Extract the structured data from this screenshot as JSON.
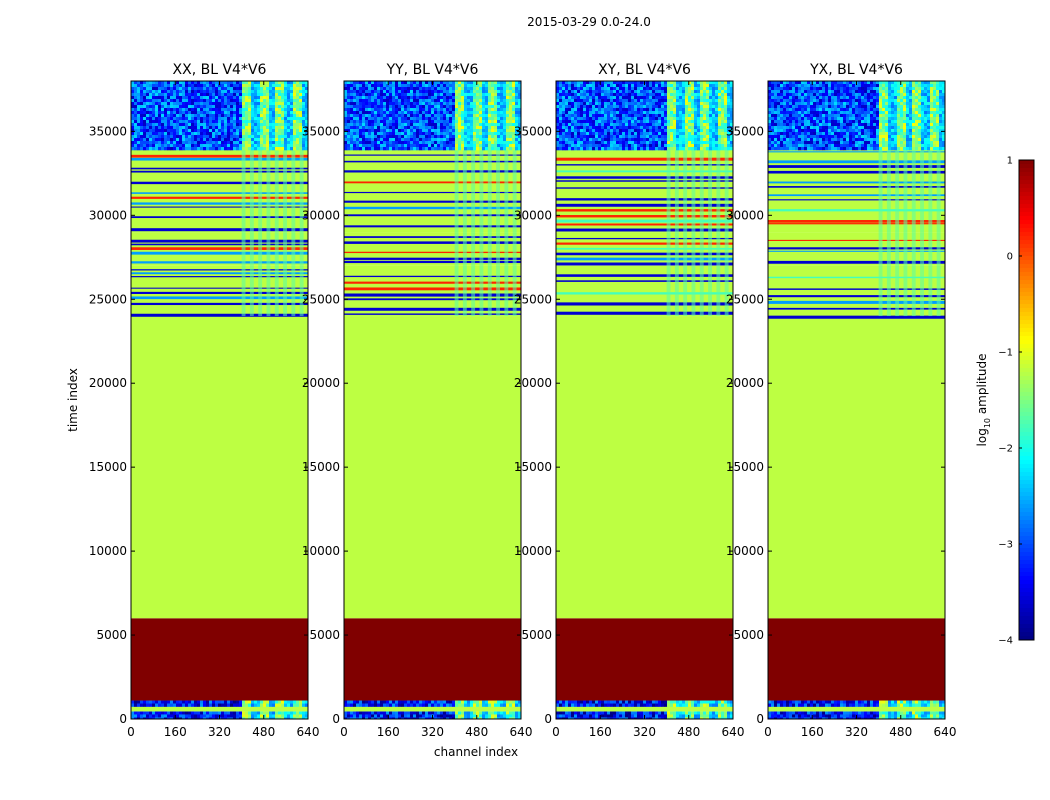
{
  "chart_data": {
    "type": "heatmap",
    "suptitle": "2015-03-29 0.0-24.0",
    "xlabel": "channel index",
    "ylabel": "time index",
    "xlim": [
      0,
      640
    ],
    "ylim": [
      0,
      38000
    ],
    "xticks": [
      0,
      160,
      320,
      480,
      640
    ],
    "yticks": [
      0,
      5000,
      10000,
      15000,
      20000,
      25000,
      30000,
      35000
    ],
    "colorbar": {
      "label": "log10 amplitude",
      "label_main": "log",
      "label_sub": "10",
      "label_rest": " amplitude",
      "vmin": -4,
      "vmax": 1,
      "ticks": [
        -4,
        -3,
        -2,
        -1,
        0,
        1
      ],
      "tick_labels": [
        "−4",
        "−3",
        "−2",
        "−1",
        "0",
        "1"
      ],
      "colormap": "jet"
    },
    "fill_value": -1.2,
    "panels": [
      {
        "title": "XX, BL V4*V6",
        "signal_channels": [
          400,
          640
        ],
        "bands": [
          {
            "t": [
              0,
              450
            ],
            "kind": "noisy"
          },
          {
            "t": [
              450,
              800
            ],
            "kind": "fill"
          },
          {
            "t": [
              800,
              1100
            ],
            "kind": "noisy"
          },
          {
            "t": [
              1100,
              6000
            ],
            "kind": "max"
          },
          {
            "t": [
              6000,
              24000
            ],
            "kind": "fill"
          },
          {
            "t": [
              24000,
              27000
            ],
            "kind": "striped"
          },
          {
            "t": [
              27000,
              29000
            ],
            "kind": "striped"
          },
          {
            "t": [
              29000,
              34000
            ],
            "kind": "striped"
          },
          {
            "t": [
              34000,
              38000
            ],
            "kind": "active"
          }
        ]
      },
      {
        "title": "YY, BL V4*V6",
        "signal_channels": [
          400,
          640
        ],
        "bands": [
          {
            "t": [
              0,
              450
            ],
            "kind": "noisy"
          },
          {
            "t": [
              450,
              800
            ],
            "kind": "fill"
          },
          {
            "t": [
              800,
              1100
            ],
            "kind": "noisy"
          },
          {
            "t": [
              1100,
              6000
            ],
            "kind": "max"
          },
          {
            "t": [
              6000,
              24000
            ],
            "kind": "fill"
          },
          {
            "t": [
              24000,
              27000
            ],
            "kind": "striped"
          },
          {
            "t": [
              27000,
              29000
            ],
            "kind": "striped"
          },
          {
            "t": [
              29000,
              34000
            ],
            "kind": "striped"
          },
          {
            "t": [
              34000,
              38000
            ],
            "kind": "active"
          }
        ]
      },
      {
        "title": "XY, BL V4*V6",
        "signal_channels": [
          400,
          640
        ],
        "bands": [
          {
            "t": [
              0,
              450
            ],
            "kind": "noisy"
          },
          {
            "t": [
              450,
              800
            ],
            "kind": "fill"
          },
          {
            "t": [
              800,
              1100
            ],
            "kind": "noisy"
          },
          {
            "t": [
              1100,
              6000
            ],
            "kind": "max"
          },
          {
            "t": [
              6000,
              24000
            ],
            "kind": "fill"
          },
          {
            "t": [
              24000,
              27000
            ],
            "kind": "striped"
          },
          {
            "t": [
              27000,
              29000
            ],
            "kind": "striped"
          },
          {
            "t": [
              29000,
              34000
            ],
            "kind": "striped"
          },
          {
            "t": [
              34000,
              38000
            ],
            "kind": "active"
          }
        ]
      },
      {
        "title": "YX, BL V4*V6",
        "signal_channels": [
          400,
          640
        ],
        "bands": [
          {
            "t": [
              0,
              450
            ],
            "kind": "noisy"
          },
          {
            "t": [
              450,
              800
            ],
            "kind": "fill"
          },
          {
            "t": [
              800,
              1100
            ],
            "kind": "noisy"
          },
          {
            "t": [
              1100,
              6000
            ],
            "kind": "max"
          },
          {
            "t": [
              6000,
              24000
            ],
            "kind": "fill"
          },
          {
            "t": [
              24000,
              27000
            ],
            "kind": "striped"
          },
          {
            "t": [
              27000,
              29000
            ],
            "kind": "striped"
          },
          {
            "t": [
              29000,
              34000
            ],
            "kind": "striped"
          },
          {
            "t": [
              34000,
              38000
            ],
            "kind": "active"
          }
        ]
      }
    ]
  }
}
